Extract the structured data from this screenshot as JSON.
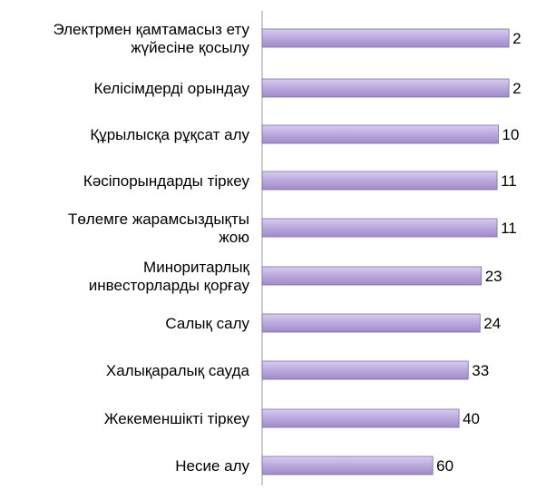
{
  "chart_data": {
    "type": "bar",
    "orientation": "horizontal",
    "axis_direction": "reversed",
    "categories": [
      [
        "Электрмен қамтамасыз ету",
        "жүйесіне қосылу"
      ],
      [
        "Келісімдерді орындау"
      ],
      [
        "Құрылысқа рұқсат алу"
      ],
      [
        "Кәсіпорындарды тіркеу"
      ],
      [
        "Төлемге жарамсыздықты",
        "жою"
      ],
      [
        "Миноритарлық",
        "инвесторларды қорғау"
      ],
      [
        "Салық салу"
      ],
      [
        "Халықаралық сауда"
      ],
      [
        "Жекеменшікті тіркеу"
      ],
      [
        "Несие алу"
      ]
    ],
    "values": [
      2,
      2,
      10,
      11,
      11,
      23,
      24,
      33,
      40,
      60
    ],
    "value_labels": [
      "2",
      "2",
      "10",
      "11",
      "11",
      "23",
      "24",
      "33",
      "40",
      "60"
    ],
    "xlim": [
      0,
      1
    ],
    "grid": false,
    "bar_color": "#b8a9d9",
    "bar_border_color": "#7d6aa8"
  }
}
